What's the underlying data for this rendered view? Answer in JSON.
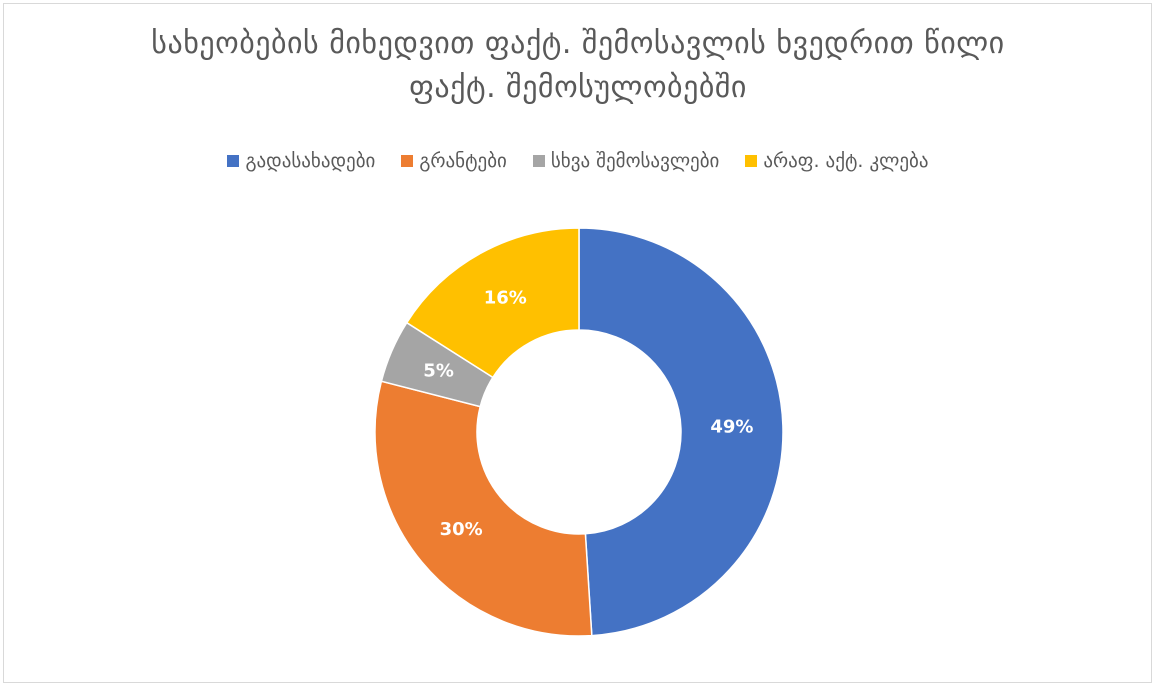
{
  "chart": {
    "title_line1": "სახეობების მიხედვით ფაქტ. შემოსავლის ხვედრით წილი",
    "title_line2": "ფაქტ. შემოსულობებში"
  },
  "chart_data": {
    "type": "pie",
    "variant": "doughnut",
    "title": "სახეობების მიხედვით ფაქტ. შემოსავლის ხვედრით წილი ფაქტ. შემოსულობებში",
    "legend_position": "top",
    "categories": [
      "გადასახადები",
      "გრანტები",
      "სხვა შემოსავლები",
      "არაფ. აქტ. კლება"
    ],
    "values": [
      49,
      30,
      5,
      16
    ],
    "labels": [
      "49%",
      "30%",
      "5%",
      "16%"
    ],
    "colors": [
      "#4472C4",
      "#ED7D31",
      "#A5A5A5",
      "#FFC000"
    ]
  }
}
